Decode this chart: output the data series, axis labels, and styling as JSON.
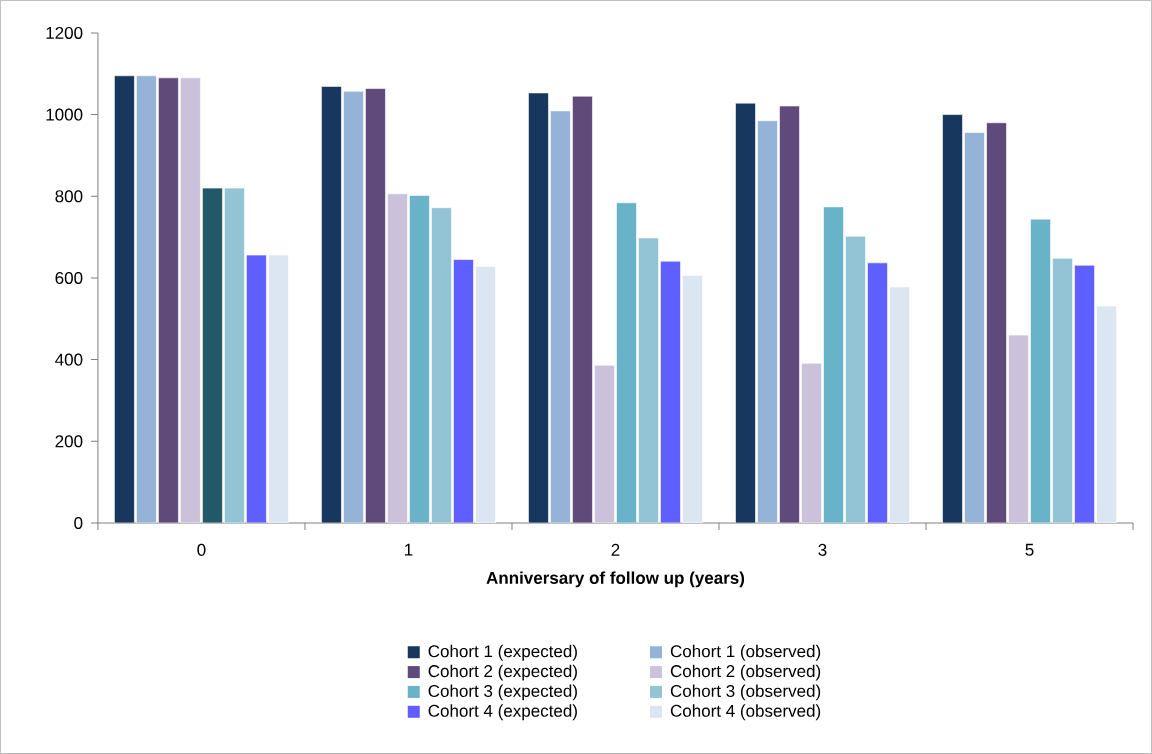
{
  "chart_data": {
    "type": "bar",
    "xlabel": "Anniversary of follow up (years)",
    "categories": [
      "0",
      "1",
      "2",
      "3",
      "5"
    ],
    "series": [
      {
        "name": "Cohort 1 (expected)",
        "color": "#17375e",
        "values": [
          1095,
          1069,
          1053,
          1028,
          1000
        ]
      },
      {
        "name": "Cohort 1 (observed)",
        "color": "#95b3d7",
        "values": [
          1095,
          1057,
          1009,
          985,
          956
        ]
      },
      {
        "name": "Cohort 2 (expected)",
        "color": "#604a7b",
        "values": [
          1090,
          1064,
          1045,
          1021,
          980
        ]
      },
      {
        "name": "Cohort 2 (observed)",
        "color": "#ccc1da",
        "values": [
          1090,
          806,
          386,
          391,
          460
        ]
      },
      {
        "name": "Cohort 3 (expected)",
        "color": "#69b3c9",
        "colors": [
          "#215968",
          "#69b3c9",
          "#69b3c9",
          "#69b3c9",
          "#69b3c9"
        ],
        "values": [
          820,
          802,
          784,
          774,
          744
        ]
      },
      {
        "name": "Cohort 3 (observed)",
        "color": "#93c4d5",
        "values": [
          820,
          772,
          698,
          702,
          648
        ]
      },
      {
        "name": "Cohort 4 (expected)",
        "color": "#5f5fff",
        "values": [
          656,
          645,
          641,
          637,
          631
        ]
      },
      {
        "name": "Cohort 4 (observed)",
        "color": "#dce6f2",
        "values": [
          656,
          628,
          606,
          578,
          531
        ]
      }
    ],
    "ylim": [
      0,
      1200
    ],
    "yticks": [
      0,
      200,
      400,
      600,
      800,
      1000,
      1200
    ],
    "grid": false,
    "legend": "bottom"
  }
}
